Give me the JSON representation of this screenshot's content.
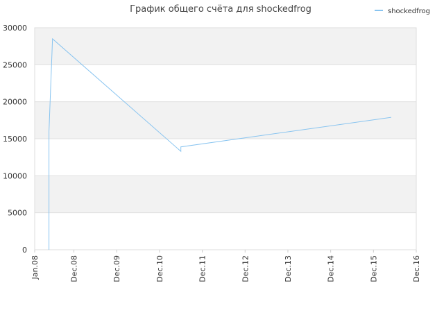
{
  "chart_data": {
    "type": "line",
    "title": "График общего счёта для shockedfrog",
    "x": [
      "2008-05",
      "2008-05",
      "2008-05",
      "2008-06",
      "2011-06",
      "2011-06",
      "2016-05"
    ],
    "series": [
      {
        "name": "shockedfrog",
        "color": "#88c4f0",
        "values": [
          0,
          15800,
          16000,
          28500,
          13300,
          13900,
          17900
        ]
      }
    ],
    "xlim": [
      "2008-01",
      "2016-12"
    ],
    "xticks": [
      {
        "value": "2008-01",
        "label": "Jan.08"
      },
      {
        "value": "2008-12",
        "label": "Dec.08"
      },
      {
        "value": "2009-12",
        "label": "Dec.09"
      },
      {
        "value": "2010-12",
        "label": "Dec.10"
      },
      {
        "value": "2011-12",
        "label": "Dec.11"
      },
      {
        "value": "2012-12",
        "label": "Dec.12"
      },
      {
        "value": "2013-12",
        "label": "Dec.13"
      },
      {
        "value": "2014-12",
        "label": "Dec.14"
      },
      {
        "value": "2015-12",
        "label": "Dec.15"
      },
      {
        "value": "2016-12",
        "label": "Dec.16"
      }
    ],
    "ylim": [
      0,
      30000
    ],
    "yticks": [
      0,
      5000,
      10000,
      15000,
      20000,
      25000,
      30000
    ],
    "grid": true,
    "band_color": "#f2f2f2",
    "legend": "top-right"
  }
}
